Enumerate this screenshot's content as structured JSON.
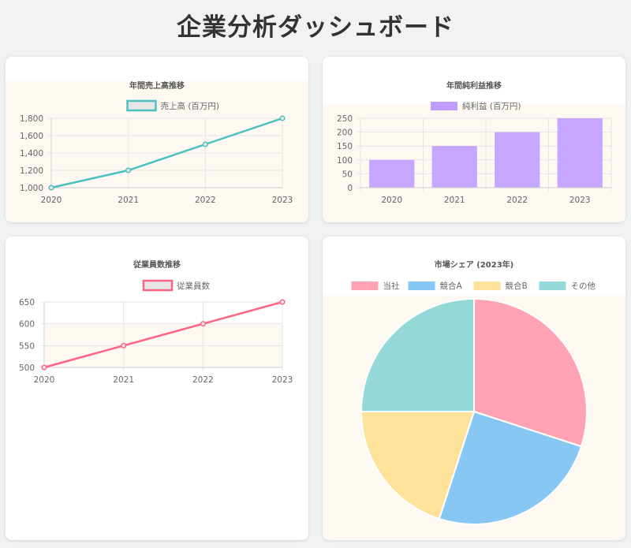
{
  "page": {
    "title": "企業分析ダッシュボード"
  },
  "chart_data": [
    {
      "id": "sales",
      "type": "line",
      "title": "年間売上高推移",
      "categories": [
        "2020",
        "2021",
        "2022",
        "2023"
      ],
      "series": [
        {
          "name": "売上高 (百万円)",
          "values": [
            1000,
            1200,
            1500,
            1800
          ],
          "color": "#4bc0c0"
        }
      ],
      "ylim": [
        1000,
        1800
      ],
      "yticks": [
        "1,000",
        "1,200",
        "1,400",
        "1,600",
        "1,800"
      ],
      "grid": true,
      "legend": "top"
    },
    {
      "id": "profit",
      "type": "bar",
      "title": "年間純利益推移",
      "categories": [
        "2020",
        "2021",
        "2022",
        "2023"
      ],
      "series": [
        {
          "name": "純利益 (百万円)",
          "values": [
            100,
            150,
            200,
            250
          ],
          "color": "#c09cff"
        }
      ],
      "ylim": [
        0,
        250
      ],
      "yticks": [
        "0",
        "50",
        "100",
        "150",
        "200",
        "250"
      ],
      "grid": true,
      "legend": "top"
    },
    {
      "id": "employees",
      "type": "line",
      "title": "従業員数推移",
      "categories": [
        "2020",
        "2021",
        "2022",
        "2023"
      ],
      "series": [
        {
          "name": "従業員数",
          "values": [
            500,
            550,
            600,
            650
          ],
          "color": "#ff6384"
        }
      ],
      "ylim": [
        500,
        650
      ],
      "yticks": [
        "500",
        "550",
        "600",
        "650"
      ],
      "grid": true,
      "legend": "top"
    },
    {
      "id": "share",
      "type": "pie",
      "title": "市場シェア (2023年)",
      "labels": [
        "当社",
        "競合A",
        "競合B",
        "その他"
      ],
      "values": [
        30,
        25,
        20,
        25
      ],
      "colors": [
        "#ffa3b4",
        "#88c7f3",
        "#ffe29a",
        "#94d8d8"
      ],
      "legend": "top"
    }
  ]
}
